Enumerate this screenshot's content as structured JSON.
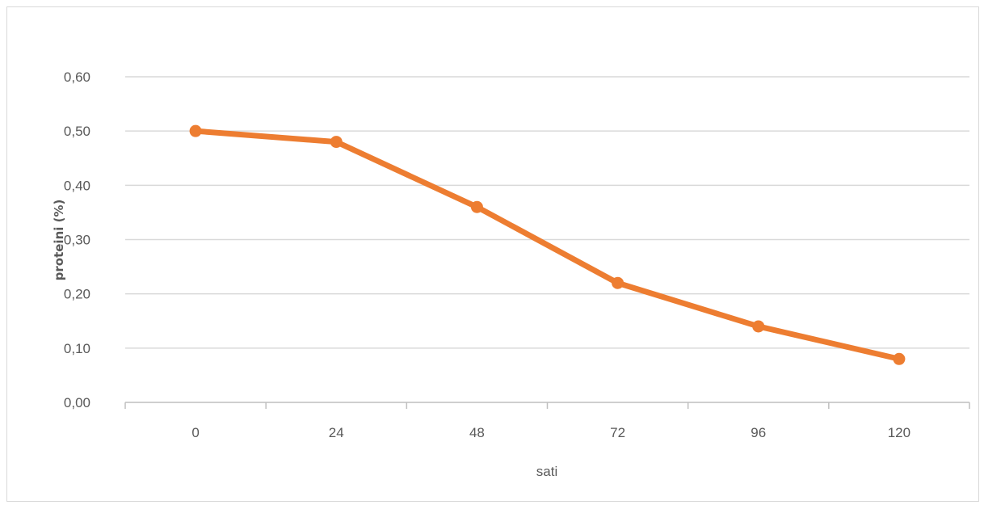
{
  "chart_data": {
    "type": "line",
    "title": "",
    "xlabel": "sati",
    "ylabel": "proteini (%)",
    "categories": [
      "0",
      "24",
      "48",
      "72",
      "96",
      "120"
    ],
    "series": [
      {
        "values": [
          0.5,
          0.48,
          0.36,
          0.22,
          0.14,
          0.08
        ]
      }
    ],
    "ylim": [
      0,
      0.6
    ],
    "yticks": [
      0,
      0.1,
      0.2,
      0.3,
      0.4,
      0.5,
      0.6
    ],
    "ytick_labels": [
      "0,00",
      "0,10",
      "0,20",
      "0,30",
      "0,40",
      "0,50",
      "0,60"
    ],
    "grid": "horizontal",
    "legend": "none",
    "colors": {
      "line": "#ED7D31",
      "grid": "#d9d9d9",
      "axis": "#bfbfbf",
      "text": "#595959"
    }
  }
}
